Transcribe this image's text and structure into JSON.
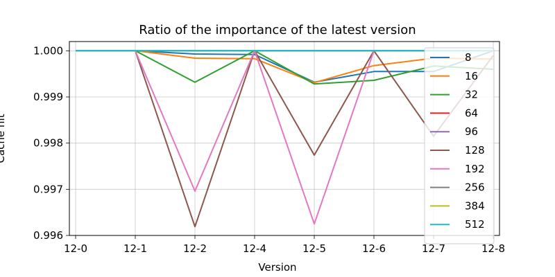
{
  "chart_data": {
    "type": "line",
    "title": "Ratio of the importance of the latest version",
    "xlabel": "Version",
    "ylabel": "Cache hit",
    "categories": [
      "12-0",
      "12-1",
      "12-2",
      "12-4",
      "12-5",
      "12-6",
      "12-7",
      "12-8"
    ],
    "ylim": [
      0.996,
      1.0002
    ],
    "yticks": [
      "0.996",
      "0.997",
      "0.998",
      "0.999",
      "1.000"
    ],
    "grid": true,
    "legend_position": "right",
    "series": [
      {
        "name": "8",
        "color": "#1f77b4",
        "values": [
          1.0,
          1.0,
          0.99993,
          0.99992,
          0.99932,
          0.99955,
          0.99955,
          1.0
        ]
      },
      {
        "name": "16",
        "color": "#ff7f0e",
        "values": [
          1.0,
          1.0,
          0.99984,
          0.99983,
          0.99931,
          0.99968,
          0.99984,
          0.99982
        ]
      },
      {
        "name": "32",
        "color": "#2ca02c",
        "values": [
          1.0,
          1.0,
          0.99932,
          1.0,
          0.99928,
          0.99936,
          0.99967,
          0.9996
        ]
      },
      {
        "name": "64",
        "color": "#d62728",
        "values": [
          1.0,
          1.0,
          1.0,
          1.0,
          1.0,
          1.0,
          1.0,
          1.0
        ]
      },
      {
        "name": "96",
        "color": "#9467bd",
        "values": [
          1.0,
          1.0,
          1.0,
          1.0,
          1.0,
          1.0,
          1.0,
          1.0
        ]
      },
      {
        "name": "128",
        "color": "#8c564b",
        "values": [
          1.0,
          1.0,
          0.99619,
          1.0,
          0.99774,
          1.0,
          0.99815,
          0.9999
        ]
      },
      {
        "name": "192",
        "color": "#e377c2",
        "values": [
          1.0,
          1.0,
          0.99696,
          1.0,
          0.99625,
          1.0,
          1.0,
          1.0
        ]
      },
      {
        "name": "256",
        "color": "#7f7f7f",
        "values": [
          1.0,
          1.0,
          1.0,
          1.0,
          1.0,
          1.0,
          1.0,
          1.0
        ]
      },
      {
        "name": "384",
        "color": "#bcbd22",
        "values": [
          1.0,
          1.0,
          1.0,
          1.0,
          1.0,
          1.0,
          1.0,
          1.0
        ]
      },
      {
        "name": "512",
        "color": "#17becf",
        "values": [
          1.0,
          1.0,
          1.0,
          1.0,
          1.0,
          1.0,
          1.0,
          1.0
        ]
      }
    ]
  }
}
